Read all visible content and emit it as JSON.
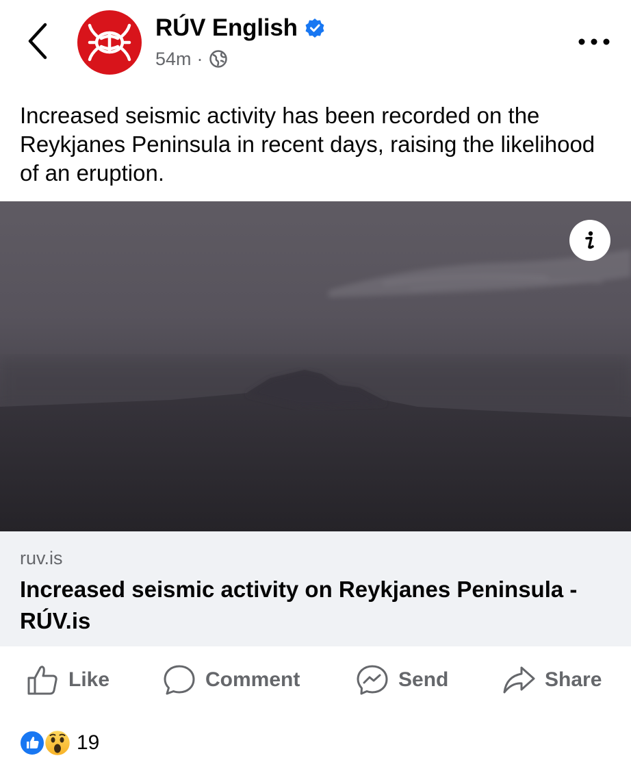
{
  "header": {
    "page_name": "RÚV English",
    "post_time": "54m",
    "separator": "·",
    "back_icon": "chevron-left-icon",
    "verified_icon": "verified-badge-icon",
    "audience_icon": "globe-icon",
    "more_icon": "more-horizontal-icon"
  },
  "post": {
    "text": "Increased seismic activity has been recorded on the Reykjanes Peninsula in recent days, raising the likelihood of an eruption."
  },
  "link_preview": {
    "domain": "ruv.is",
    "title": "Increased seismic activity on Reykjanes Peninsula - RÚV.is",
    "info_icon": "info-icon"
  },
  "actions": [
    {
      "label": "Like",
      "icon": "thumbs-up-icon"
    },
    {
      "label": "Comment",
      "icon": "comment-icon"
    },
    {
      "label": "Send",
      "icon": "messenger-icon"
    },
    {
      "label": "Share",
      "icon": "share-icon"
    }
  ],
  "reactions": {
    "count": "19",
    "types": [
      "like",
      "wow"
    ]
  },
  "colors": {
    "brand_red": "#d8141b",
    "verified_blue": "#1877f2",
    "muted_text": "#65676b",
    "card_bg": "#f0f2f5"
  }
}
